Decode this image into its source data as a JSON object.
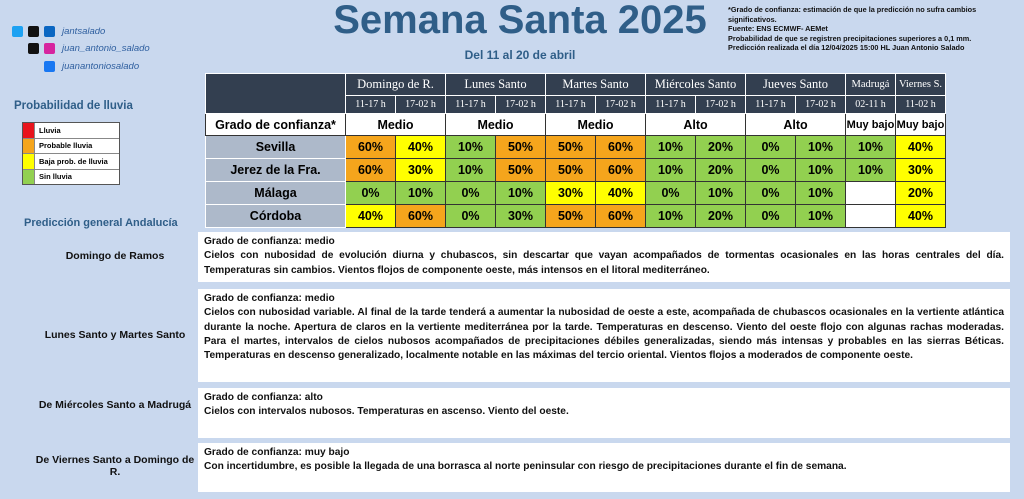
{
  "header": {
    "title": "Semana Santa 2025",
    "subtitle": "Del 11 al 20 de abril"
  },
  "social": [
    "jantsalado",
    "juan_antonio_salado",
    "juanantoniosalado"
  ],
  "notes": [
    "*Grado de confianza: estimación de que la predicción no sufra cambios significativos.",
    "Fuente: ENS ECMWF- AEMet",
    "Probabilidad de que se registren precipitaciones superiores a 0,1 mm.",
    "Predicción realizada el día 12/04/2025 15:00 HL Juan Antonio Salado"
  ],
  "legend": {
    "title": "Probabilidad de lluvia",
    "items": [
      {
        "label": "Lluvia",
        "color": "#e8141c"
      },
      {
        "label": "Probable lluvia",
        "color": "#f5a51c"
      },
      {
        "label": "Baja prob. de lluvia",
        "color": "#ffff00"
      },
      {
        "label": "Sin lluvia",
        "color": "#92d050"
      }
    ]
  },
  "table": {
    "confidence_label": "Grado de confianza*",
    "days": [
      {
        "name": "Domingo de R.",
        "periods": [
          "11-17 h",
          "17-02 h"
        ],
        "confidence": "Medio"
      },
      {
        "name": "Lunes Santo",
        "periods": [
          "11-17 h",
          "17-02 h"
        ],
        "confidence": "Medio"
      },
      {
        "name": "Martes Santo",
        "periods": [
          "11-17 h",
          "17-02 h"
        ],
        "confidence": "Medio"
      },
      {
        "name": "Miércoles Santo",
        "periods": [
          "11-17 h",
          "17-02 h"
        ],
        "confidence": "Alto"
      },
      {
        "name": "Jueves Santo",
        "periods": [
          "11-17 h",
          "17-02 h"
        ],
        "confidence": "Alto"
      },
      {
        "name": "Madrugá",
        "periods": [
          "02-11 h"
        ],
        "confidence": "Muy bajo"
      },
      {
        "name": "Viernes S.",
        "periods": [
          "11-02 h"
        ],
        "confidence": "Muy bajo"
      }
    ],
    "rows": [
      {
        "city": "Sevilla",
        "cells": [
          {
            "text": "60%",
            "color": "#f5a51c"
          },
          {
            "text": "40%",
            "color": "#ffff00"
          },
          {
            "text": "10%",
            "color": "#92d050"
          },
          {
            "text": "50%",
            "color": "#f5a51c"
          },
          {
            "text": "50%",
            "color": "#f5a51c"
          },
          {
            "text": "60%",
            "color": "#f5a51c"
          },
          {
            "text": "10%",
            "color": "#92d050"
          },
          {
            "text": "20%",
            "color": "#92d050"
          },
          {
            "text": "0%",
            "color": "#92d050"
          },
          {
            "text": "10%",
            "color": "#92d050"
          },
          {
            "text": "10%",
            "color": "#92d050"
          },
          {
            "text": "40%",
            "color": "#ffff00"
          }
        ]
      },
      {
        "city": "Jerez de la Fra.",
        "cells": [
          {
            "text": "60%",
            "color": "#f5a51c"
          },
          {
            "text": "30%",
            "color": "#ffff00"
          },
          {
            "text": "10%",
            "color": "#92d050"
          },
          {
            "text": "50%",
            "color": "#f5a51c"
          },
          {
            "text": "50%",
            "color": "#f5a51c"
          },
          {
            "text": "60%",
            "color": "#f5a51c"
          },
          {
            "text": "10%",
            "color": "#92d050"
          },
          {
            "text": "20%",
            "color": "#92d050"
          },
          {
            "text": "0%",
            "color": "#92d050"
          },
          {
            "text": "10%",
            "color": "#92d050"
          },
          {
            "text": "10%",
            "color": "#92d050"
          },
          {
            "text": "30%",
            "color": "#ffff00"
          }
        ]
      },
      {
        "city": "Málaga",
        "cells": [
          {
            "text": "0%",
            "color": "#92d050"
          },
          {
            "text": "10%",
            "color": "#92d050"
          },
          {
            "text": "0%",
            "color": "#92d050"
          },
          {
            "text": "10%",
            "color": "#92d050"
          },
          {
            "text": "30%",
            "color": "#ffff00"
          },
          {
            "text": "40%",
            "color": "#ffff00"
          },
          {
            "text": "0%",
            "color": "#92d050"
          },
          {
            "text": "10%",
            "color": "#92d050"
          },
          {
            "text": "0%",
            "color": "#92d050"
          },
          {
            "text": "10%",
            "color": "#92d050"
          },
          null,
          {
            "text": "20%",
            "color": "#ffff00"
          }
        ]
      },
      {
        "city": "Córdoba",
        "cells": [
          {
            "text": "40%",
            "color": "#ffff00"
          },
          {
            "text": "60%",
            "color": "#f5a51c"
          },
          {
            "text": "0%",
            "color": "#92d050"
          },
          {
            "text": "30%",
            "color": "#92d050"
          },
          {
            "text": "50%",
            "color": "#f5a51c"
          },
          {
            "text": "60%",
            "color": "#f5a51c"
          },
          {
            "text": "10%",
            "color": "#92d050"
          },
          {
            "text": "20%",
            "color": "#92d050"
          },
          {
            "text": "0%",
            "color": "#92d050"
          },
          {
            "text": "10%",
            "color": "#92d050"
          },
          null,
          {
            "text": "40%",
            "color": "#ffff00"
          }
        ]
      }
    ]
  },
  "forecast": {
    "title": "Predicción general Andalucía",
    "items": [
      {
        "period": "Domingo de Ramos",
        "confidence": "Grado de confianza: medio",
        "text": "Cielos con nubosidad de evolución diurna y chubascos, sin descartar que vayan acompañados de tormentas ocasionales en las horas centrales del día. Temperaturas sin cambios. Vientos flojos de componente oeste, más intensos en el litoral mediterráneo."
      },
      {
        "period": "Lunes Santo y Martes Santo",
        "confidence": "Grado de confianza: medio",
        "text": "Cielos con nubosidad variable. Al final de la tarde tenderá a aumentar la nubosidad de oeste a este, acompañada de chubascos ocasionales en la vertiente atlántica durante la noche. Apertura de claros en la vertiente mediterránea por la tarde. Temperaturas en descenso. Viento del oeste flojo con algunas rachas moderadas. Para el martes, intervalos de cielos nubosos acompañados de precipitaciones débiles generalizadas, siendo más intensas y probables en las sierras Béticas. Temperaturas en descenso generalizado, localmente notable en las máximas del tercio oriental. Vientos flojos a moderados de componente oeste."
      },
      {
        "period": "De Miércoles Santo a Madrugá",
        "confidence": "Grado de confianza: alto",
        "text": "Cielos con intervalos nubosos. Temperaturas en ascenso. Viento del oeste."
      },
      {
        "period": "De Viernes Santo a Domingo de R.",
        "confidence": "Grado de confianza: muy bajo",
        "text": "Con incertidumbre, es posible la llegada de una borrasca al norte peninsular con riesgo de precipitaciones durante el fin de semana."
      }
    ]
  }
}
